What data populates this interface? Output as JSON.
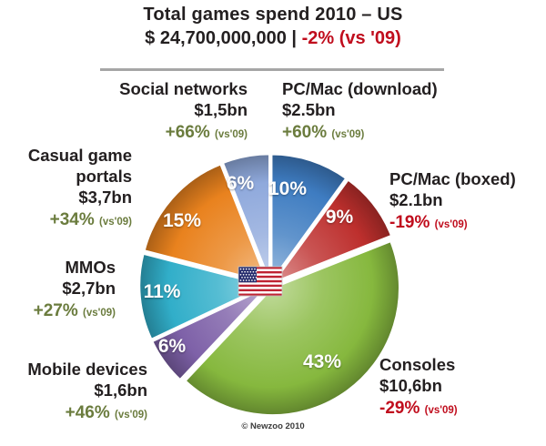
{
  "header": {
    "title": "Total games spend 2010 – US",
    "total": "$ 24,700,000,000",
    "separator": "|",
    "total_change": "-2% (vs '09)"
  },
  "chart_data": {
    "type": "pie",
    "title": "Total games spend 2010 – US",
    "total_usd": 24700000000,
    "total_change_pct_vs_09": -2,
    "direction": "clockwise",
    "start_angle_deg": 0,
    "vs_label": "(vs'09)",
    "center_icon": "us-flag-icon",
    "segments": [
      {
        "id": "pc_mac_download",
        "label": "PC/Mac (download)",
        "value": "$2.5bn",
        "share_pct": 10,
        "change": "+60%",
        "change_dir": "up",
        "color": "#3e7cc1"
      },
      {
        "id": "pc_mac_boxed",
        "label": "PC/Mac (boxed)",
        "value": "$2.1bn",
        "share_pct": 9,
        "change": "-19%",
        "change_dir": "down",
        "color": "#bd2f2d"
      },
      {
        "id": "consoles",
        "label": "Consoles",
        "value": "$10,6bn",
        "share_pct": 43,
        "change": "-29%",
        "change_dir": "down",
        "color": "#86b83e"
      },
      {
        "id": "mobile_devices",
        "label": "Mobile devices",
        "value": "$1,6bn",
        "share_pct": 6,
        "change": "+46%",
        "change_dir": "up",
        "color": "#7e61a8"
      },
      {
        "id": "mmos",
        "label": "MMOs",
        "value": "$2,7bn",
        "share_pct": 11,
        "change": "+27%",
        "change_dir": "up",
        "color": "#31aec9"
      },
      {
        "id": "casual_portals",
        "label": "Casual game portals",
        "value": "$3,7bn",
        "share_pct": 15,
        "change": "+34%",
        "change_dir": "up",
        "color": "#e9821e"
      },
      {
        "id": "social_networks",
        "label": "Social networks",
        "value": "$1,5bn",
        "share_pct": 6,
        "change": "+66%",
        "change_dir": "up",
        "color": "#8fa9dc"
      }
    ]
  },
  "colors": {
    "positive_text": "#6b7c3e",
    "negative_text": "#c00d1d",
    "title_text": "#231f20",
    "divider": "#a6a6a6"
  },
  "footer": {
    "copyright": "© Newzoo 2010"
  }
}
